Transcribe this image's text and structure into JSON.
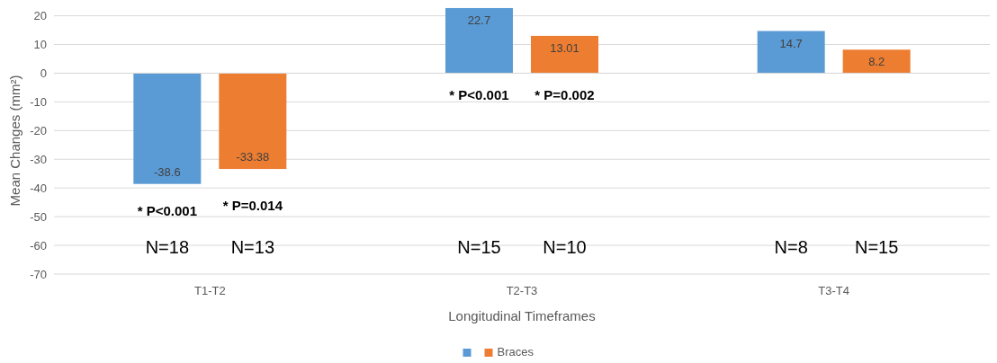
{
  "chart_data": {
    "type": "bar",
    "xlabel": "Longitudinal Timeframes",
    "ylabel": "Mean Changes (mm²)",
    "categories": [
      "T1-T2",
      "T2-T3",
      "T3-T4"
    ],
    "series": [
      {
        "color": "#5b9bd5",
        "values": [
          -38.6,
          22.7,
          14.7
        ]
      },
      {
        "name": "Braces",
        "color": "#ed7d31",
        "values": [
          -33.38,
          13.01,
          8.2
        ]
      }
    ],
    "ylim": [
      -70,
      23
    ],
    "yticks": [
      -70,
      -60,
      -50,
      -40,
      -30,
      -20,
      -10,
      0,
      10,
      20
    ],
    "grid": "y",
    "legend": "bottom",
    "data_labels": true,
    "annotations": [
      "* P<0.001",
      "* P=0.014",
      "* P<0.001",
      "* P=0.002",
      "N=18",
      "N=13",
      "N=15",
      "N=10",
      "N=8",
      "N=15"
    ]
  }
}
